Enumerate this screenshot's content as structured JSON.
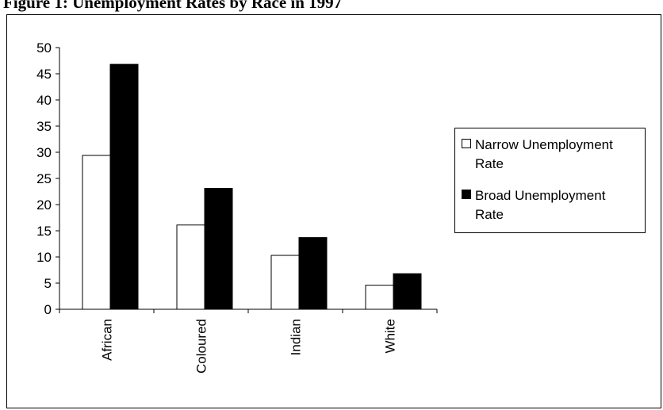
{
  "title": "Figure 1: Unemployment Rates by Race in 1997",
  "colors": {
    "narrow": "#ffffff",
    "broad": "#000000",
    "axis": "#000000"
  },
  "chart_data": {
    "type": "bar",
    "title": "Figure 1: Unemployment Rates by Race in 1997",
    "xlabel": "",
    "ylabel": "",
    "ylim": [
      0,
      50
    ],
    "yticks": [
      0,
      5,
      10,
      15,
      20,
      25,
      30,
      35,
      40,
      45,
      50
    ],
    "categories": [
      "African",
      "Coloured",
      "Indian",
      "White"
    ],
    "series": [
      {
        "name": "Narrow Unemployment Rate",
        "values": [
          29.4,
          16.1,
          10.3,
          4.6
        ]
      },
      {
        "name": "Broad Unemployment Rate",
        "values": [
          46.8,
          23.1,
          13.7,
          6.8
        ]
      }
    ],
    "grid": false,
    "legend": "right"
  }
}
